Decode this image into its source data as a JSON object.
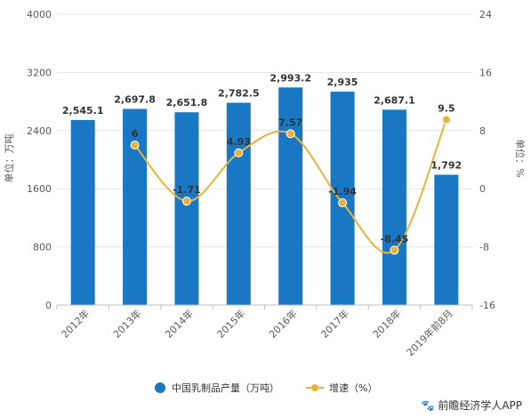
{
  "chart_data": {
    "type": "bar+line",
    "categories": [
      "2012年",
      "2013年",
      "2014年",
      "2015年",
      "2016年",
      "2017年",
      "2018年",
      "2019年前8月"
    ],
    "series": [
      {
        "name": "中国乳制品产量（万吨）",
        "type": "bar",
        "axis": "left",
        "values": [
          2545.1,
          2697.8,
          2651.8,
          2782.5,
          2993.2,
          2935,
          2687.1,
          1792
        ],
        "labels": [
          "2,545.1",
          "2,697.8",
          "2,651.8",
          "2,782.5",
          "2,993.2",
          "2,935",
          "2,687.1",
          "1,792"
        ]
      },
      {
        "name": "增速（%）",
        "type": "line",
        "axis": "right",
        "values": [
          null,
          6,
          -1.71,
          4.93,
          7.57,
          -1.94,
          -8.45,
          9.5
        ],
        "labels": [
          "",
          "6",
          "-1.71",
          "4.93",
          "7.57",
          "-1.94",
          "-8.45",
          "9.5"
        ]
      }
    ],
    "ylabel_left": "单位：万吨",
    "ylabel_right": "单位：%",
    "ylim_left": [
      0,
      4000
    ],
    "yticks_left": [
      "0",
      "800",
      "1600",
      "2400",
      "3200",
      "4000"
    ],
    "ylim_right": [
      -16,
      24
    ],
    "yticks_right": [
      "-16",
      "-8",
      "0",
      "8",
      "16",
      "24"
    ],
    "legend_position": "bottom",
    "colors": {
      "bar": "#1a77c4",
      "line": "#e8b33a"
    }
  },
  "source": "前瞻经济学人APP"
}
